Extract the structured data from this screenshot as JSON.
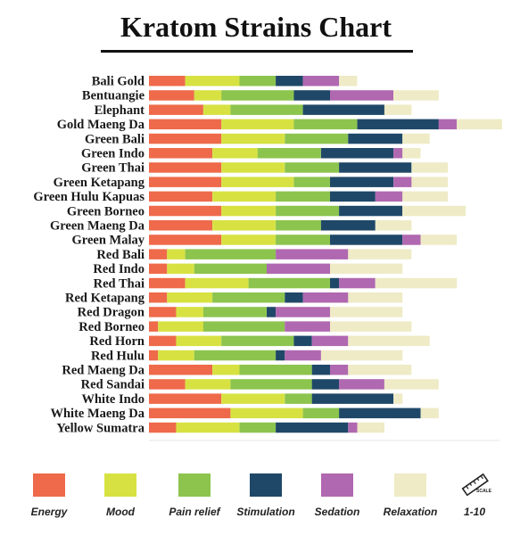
{
  "chart_data": {
    "type": "bar",
    "stacked": true,
    "orientation": "horizontal",
    "title": "Kratom Strains Chart",
    "categories": [
      "Bali Gold",
      "Bentuangie",
      "Elephant",
      "Gold Maeng Da",
      "Green Bali",
      "Green Indo",
      "Green Thai",
      "Green Ketapang",
      "Green Hulu Kapuas",
      "Green Borneo",
      "Green Maeng Da",
      "Green Malay",
      "Red Bali",
      "Red Indo",
      "Red Thai",
      "Red Ketapang",
      "Red Dragon",
      "Red Borneo",
      "Red Horn",
      "Red Hulu",
      "Red Maeng Da",
      "Red Sandai",
      "White Indo",
      "White Maeng Da",
      "Yellow Sumatra"
    ],
    "series": [
      {
        "name": "Energy",
        "color": "#ee6a4a",
        "values": [
          4,
          5,
          6,
          8,
          8,
          7,
          8,
          8,
          7,
          8,
          7,
          8,
          2,
          2,
          4,
          2,
          3,
          1,
          3,
          1,
          7,
          4,
          8,
          9,
          3
        ]
      },
      {
        "name": "Mood",
        "color": "#d7e242",
        "values": [
          6,
          3,
          3,
          8,
          7,
          5,
          7,
          8,
          7,
          6,
          7,
          6,
          2,
          3,
          7,
          5,
          3,
          5,
          5,
          4,
          3,
          5,
          7,
          8,
          7
        ]
      },
      {
        "name": "Pain relief",
        "color": "#8cc44e",
        "values": [
          4,
          8,
          8,
          7,
          7,
          7,
          6,
          4,
          6,
          7,
          5,
          6,
          10,
          8,
          9,
          8,
          7,
          9,
          8,
          9,
          8,
          9,
          3,
          4,
          4
        ]
      },
      {
        "name": "Stimulation",
        "color": "#1f4868",
        "values": [
          3,
          4,
          9,
          9,
          6,
          8,
          8,
          7,
          5,
          7,
          6,
          8,
          0,
          0,
          1,
          2,
          1,
          0,
          2,
          1,
          2,
          3,
          9,
          9,
          8
        ]
      },
      {
        "name": "Sedation",
        "color": "#b068b0",
        "values": [
          4,
          7,
          0,
          2,
          0,
          1,
          0,
          2,
          3,
          0,
          0,
          2,
          8,
          7,
          4,
          5,
          6,
          5,
          4,
          4,
          2,
          5,
          0,
          0,
          1
        ]
      },
      {
        "name": "Relaxation",
        "color": "#eeebc6",
        "values": [
          2,
          5,
          3,
          5,
          3,
          2,
          4,
          4,
          5,
          7,
          4,
          4,
          7,
          8,
          9,
          6,
          8,
          9,
          9,
          9,
          7,
          6,
          1,
          2,
          3
        ]
      }
    ],
    "scale_label": "1-10",
    "legend_position": "bottom"
  },
  "legend": {
    "scale_icon": "ruler-icon",
    "scale_icon_text": "SCALE"
  }
}
